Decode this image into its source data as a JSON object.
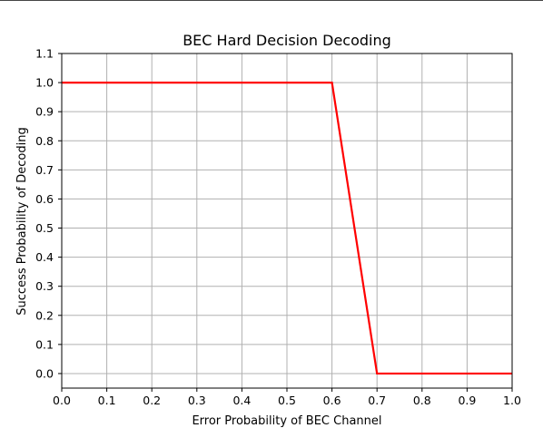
{
  "chart_data": {
    "type": "line",
    "title": "BEC Hard Decision Decoding",
    "xlabel": "Error Probability of BEC Channel",
    "ylabel": "Success Probability of Decoding",
    "xlim": [
      0.0,
      1.0
    ],
    "ylim": [
      -0.05,
      1.1
    ],
    "xticks": [
      0.0,
      0.1,
      0.2,
      0.3,
      0.4,
      0.5,
      0.6,
      0.7,
      0.8,
      0.9,
      1.0
    ],
    "xtick_labels": [
      "0.0",
      "0.1",
      "0.2",
      "0.3",
      "0.4",
      "0.5",
      "0.6",
      "0.7",
      "0.8",
      "0.9",
      "1.0"
    ],
    "yticks": [
      0.0,
      0.1,
      0.2,
      0.3,
      0.4,
      0.5,
      0.6,
      0.7,
      0.8,
      0.9,
      1.0,
      1.1
    ],
    "ytick_labels": [
      "0.0",
      "0.1",
      "0.2",
      "0.3",
      "0.4",
      "0.5",
      "0.6",
      "0.7",
      "0.8",
      "0.9",
      "1.0",
      "1.1"
    ],
    "grid": true,
    "series": [
      {
        "color": "#ff0000",
        "x": [
          0.0,
          0.1,
          0.2,
          0.3,
          0.4,
          0.5,
          0.6,
          0.7,
          0.8,
          0.9,
          1.0
        ],
        "y": [
          1.0,
          1.0,
          1.0,
          1.0,
          1.0,
          1.0,
          1.0,
          0.0,
          0.0,
          0.0,
          0.0
        ]
      }
    ]
  }
}
